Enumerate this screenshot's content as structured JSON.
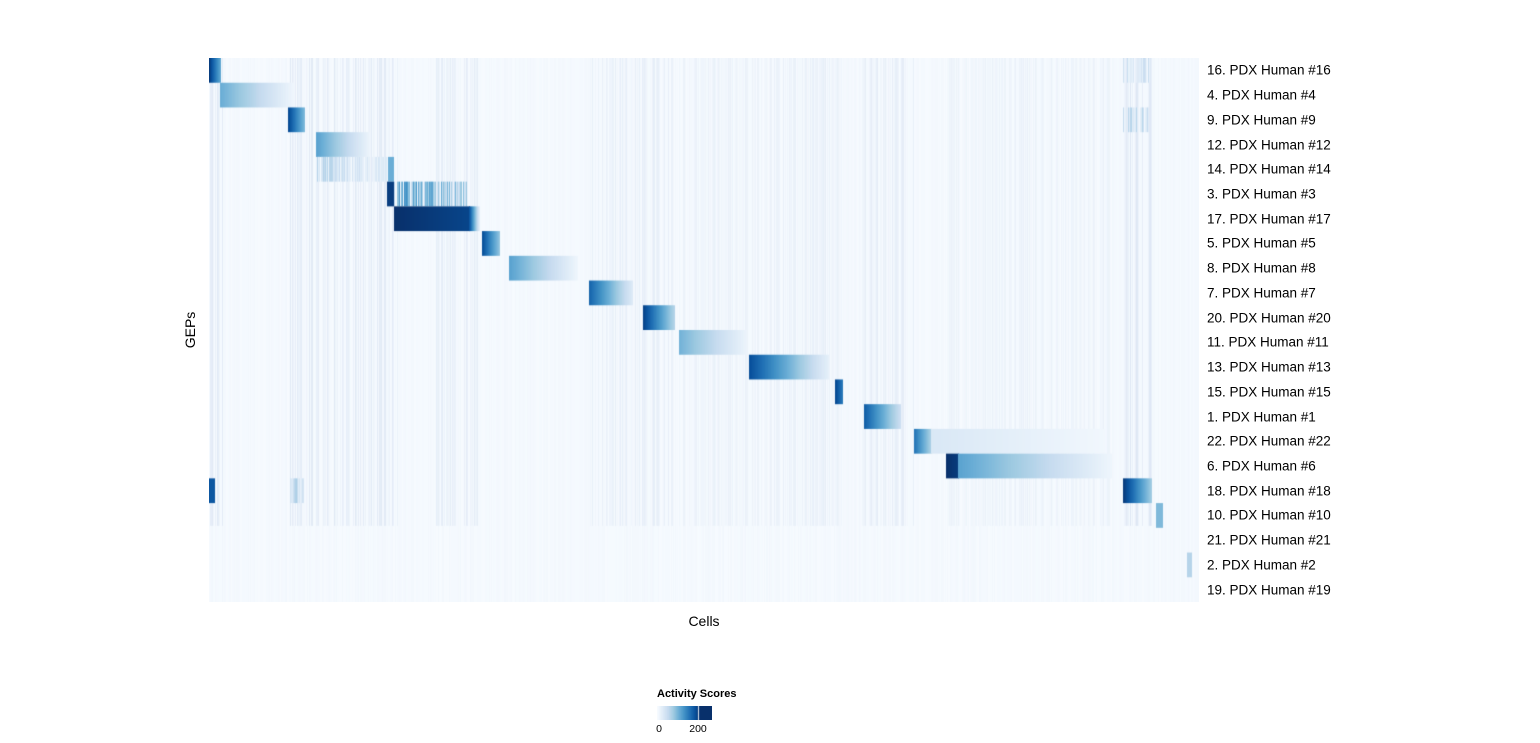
{
  "chart_data": {
    "type": "heatmap",
    "xlabel": "Cells",
    "ylabel": "GEPs",
    "background": "#f7fbff",
    "colormap_stops": [
      "#f7fbff",
      "#deebf7",
      "#c6dbef",
      "#9ecae1",
      "#6baed6",
      "#4292c6",
      "#2171b5",
      "#08519c",
      "#08306b"
    ],
    "legend": {
      "title": "Activity Scores",
      "tick_values": [
        0,
        200
      ],
      "tick_labels": [
        "0",
        "200"
      ]
    },
    "rows": [
      {
        "label": "16. PDX Human #16",
        "blocks": [
          {
            "x0": 0.0,
            "x1": 0.012,
            "v0": 0.95,
            "v1": 0.5
          },
          {
            "x0": 0.924,
            "x1": 0.95,
            "v0": 0.2,
            "v1": 0.2,
            "style": "streaks"
          }
        ]
      },
      {
        "label": "4. PDX Human #4",
        "blocks": [
          {
            "x0": 0.012,
            "x1": 0.085,
            "v0": 0.5,
            "v1": 0.04
          }
        ]
      },
      {
        "label": "9. PDX Human #9",
        "blocks": [
          {
            "x0": 0.08,
            "x1": 0.096,
            "v0": 0.9,
            "v1": 0.45
          },
          {
            "x0": 0.924,
            "x1": 0.95,
            "v0": 0.25,
            "v1": 0.25,
            "style": "streaks"
          }
        ]
      },
      {
        "label": "12. PDX Human #12",
        "blocks": [
          {
            "x0": 0.109,
            "x1": 0.162,
            "v0": 0.55,
            "v1": 0.05
          }
        ]
      },
      {
        "label": "14. PDX Human #14",
        "blocks": [
          {
            "x0": 0.109,
            "x1": 0.187,
            "v0": 0.28,
            "v1": 0.1,
            "style": "streaks"
          },
          {
            "x0": 0.181,
            "x1": 0.186,
            "v0": 0.5,
            "v1": 0.5
          }
        ]
      },
      {
        "label": "3. PDX Human #3",
        "blocks": [
          {
            "x0": 0.18,
            "x1": 0.186,
            "v0": 0.95,
            "v1": 0.95
          },
          {
            "x0": 0.186,
            "x1": 0.26,
            "v0": 0.6,
            "v1": 0.35,
            "style": "streaks"
          }
        ]
      },
      {
        "label": "17. PDX Human #17",
        "blocks": [
          {
            "x0": 0.187,
            "x1": 0.263,
            "v0": 1.0,
            "v1": 0.92
          },
          {
            "x0": 0.263,
            "x1": 0.273,
            "v0": 0.85,
            "v1": 0.08
          }
        ]
      },
      {
        "label": "5. PDX Human #5",
        "blocks": [
          {
            "x0": 0.276,
            "x1": 0.293,
            "v0": 0.88,
            "v1": 0.4
          }
        ]
      },
      {
        "label": "8. PDX Human #8",
        "blocks": [
          {
            "x0": 0.304,
            "x1": 0.372,
            "v0": 0.55,
            "v1": 0.04
          }
        ]
      },
      {
        "label": "7. PDX Human #7",
        "blocks": [
          {
            "x0": 0.384,
            "x1": 0.428,
            "v0": 0.8,
            "v1": 0.12
          }
        ]
      },
      {
        "label": "20. PDX Human #20",
        "blocks": [
          {
            "x0": 0.439,
            "x1": 0.47,
            "v0": 0.92,
            "v1": 0.3
          }
        ]
      },
      {
        "label": "11. PDX Human #11",
        "blocks": [
          {
            "x0": 0.475,
            "x1": 0.543,
            "v0": 0.48,
            "v1": 0.05
          }
        ]
      },
      {
        "label": "13. PDX Human #13",
        "blocks": [
          {
            "x0": 0.546,
            "x1": 0.626,
            "v0": 0.88,
            "v1": 0.08
          }
        ]
      },
      {
        "label": "15. PDX Human #15",
        "blocks": [
          {
            "x0": 0.633,
            "x1": 0.64,
            "v0": 0.9,
            "v1": 0.7
          }
        ]
      },
      {
        "label": "1. PDX Human #1",
        "blocks": [
          {
            "x0": 0.662,
            "x1": 0.698,
            "v0": 0.82,
            "v1": 0.22
          }
        ]
      },
      {
        "label": "22. PDX Human #22",
        "blocks": [
          {
            "x0": 0.713,
            "x1": 0.73,
            "v0": 0.72,
            "v1": 0.3
          },
          {
            "x0": 0.73,
            "x1": 0.905,
            "v0": 0.15,
            "v1": 0.03
          }
        ]
      },
      {
        "label": "6. PDX Human #6",
        "blocks": [
          {
            "x0": 0.745,
            "x1": 0.757,
            "v0": 1.0,
            "v1": 0.95
          },
          {
            "x0": 0.757,
            "x1": 0.912,
            "v0": 0.55,
            "v1": 0.04
          }
        ]
      },
      {
        "label": "18. PDX Human #18",
        "blocks": [
          {
            "x0": 0.0,
            "x1": 0.006,
            "v0": 0.85,
            "v1": 0.85
          },
          {
            "x0": 0.082,
            "x1": 0.095,
            "v0": 0.3,
            "v1": 0.3,
            "style": "streaks"
          },
          {
            "x0": 0.924,
            "x1": 0.952,
            "v0": 0.95,
            "v1": 0.35
          }
        ]
      },
      {
        "label": "10. PDX Human #10",
        "blocks": [
          {
            "x0": 0.957,
            "x1": 0.963,
            "v0": 0.45,
            "v1": 0.45
          }
        ]
      },
      {
        "label": "21. PDX Human #21",
        "blocks": []
      },
      {
        "label": "2. PDX Human #2",
        "blocks": [
          {
            "x0": 0.988,
            "x1": 0.992,
            "v0": 0.3,
            "v1": 0.3
          }
        ]
      },
      {
        "label": "19. PDX Human #19",
        "blocks": []
      }
    ],
    "noise_bands": [
      {
        "x0": 0.0,
        "x1": 0.015,
        "a": 0.08
      },
      {
        "x0": 0.08,
        "x1": 0.105,
        "a": 0.1
      },
      {
        "x0": 0.109,
        "x1": 0.19,
        "a": 0.08
      },
      {
        "x0": 0.23,
        "x1": 0.272,
        "a": 0.07
      },
      {
        "x0": 0.385,
        "x1": 0.47,
        "a": 0.06
      },
      {
        "x0": 0.475,
        "x1": 0.545,
        "a": 0.04
      },
      {
        "x0": 0.548,
        "x1": 0.64,
        "a": 0.05
      },
      {
        "x0": 0.66,
        "x1": 0.712,
        "a": 0.06
      },
      {
        "x0": 0.745,
        "x1": 0.91,
        "a": 0.04
      },
      {
        "x0": 0.924,
        "x1": 0.952,
        "a": 0.1
      }
    ]
  }
}
